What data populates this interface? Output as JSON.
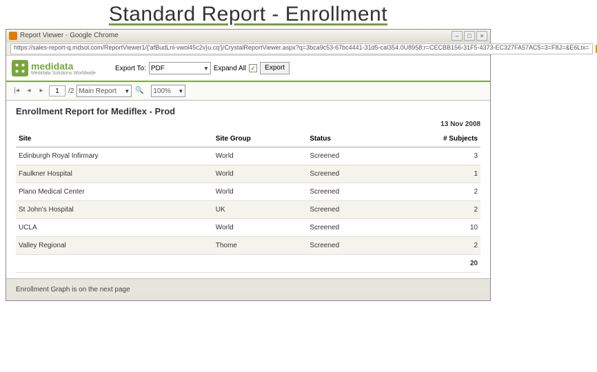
{
  "slide": {
    "title": "Standard Report - Enrollment"
  },
  "window": {
    "title": "Report Viewer - Google Chrome",
    "url": "https://sales-report-q.mdsol.com/ReportViewer1/{'afBudLnl-vwol45c2v}u.cq'}/CrystalReportViewer.aspx?q=3bca9c53-67bc4441-31d5-cal354.0U8958:r=CECBB156-31F5-4373-EC327FA57AC5=3=F8J=&E6Ltx="
  },
  "toolbar": {
    "brand": "medidata",
    "brand_sub": "Medidata Solutions Worldwide",
    "export_label": "Export To:",
    "export_format": "PDF",
    "expand_label": "Expand All",
    "expand_checked": "✓",
    "export_btn": "Export"
  },
  "pager": {
    "current": "1",
    "total": "/2",
    "main_report": "Main Report",
    "zoom": "100%"
  },
  "report": {
    "title": "Enrollment Report for Mediflex - Prod",
    "date": "13 Nov 2008",
    "columns": [
      "Site",
      "Site Group",
      "Status",
      "# Subjects"
    ],
    "rows": [
      [
        "Edinburgh Royal Infirmary",
        "World",
        "Screened",
        "3"
      ],
      [
        "Faulkner Hospital",
        "World",
        "Screened",
        "1"
      ],
      [
        "Plano Medical Center",
        "World",
        "Screened",
        "2"
      ],
      [
        "St John's Hospital",
        "UK",
        "Screened",
        "2"
      ],
      [
        "UCLA",
        "World",
        "Screened",
        "10"
      ],
      [
        "Valley Regional",
        "Thome",
        "Screened",
        "2"
      ]
    ],
    "total": "20",
    "footnote": "Enrollment Graph is on the next page"
  }
}
